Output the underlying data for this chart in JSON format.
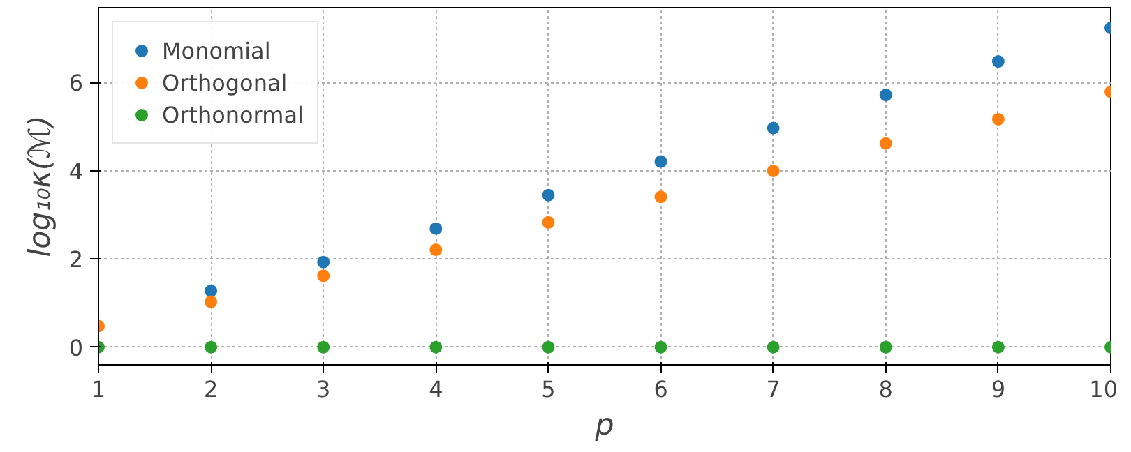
{
  "chart_data": {
    "type": "scatter",
    "xlabel": "p",
    "ylabel": "log₁₀κ(ℳ)",
    "x": [
      1,
      2,
      3,
      4,
      5,
      6,
      7,
      8,
      9,
      10
    ],
    "series": [
      {
        "name": "Monomial",
        "color": "#1f77b4",
        "values": [
          null,
          1.28,
          1.93,
          2.69,
          3.45,
          4.21,
          4.97,
          5.72,
          6.48,
          7.24
        ]
      },
      {
        "name": "Orthogonal",
        "color": "#ff7f0e",
        "values": [
          0.48,
          1.03,
          1.62,
          2.21,
          2.83,
          3.41,
          4.0,
          4.62,
          5.17,
          5.79
        ]
      },
      {
        "name": "Orthonormal",
        "color": "#2ca02c",
        "values": [
          0,
          0,
          0,
          0,
          0,
          0,
          0,
          0,
          0,
          0
        ]
      }
    ],
    "xlim": [
      1,
      10
    ],
    "ylim": [
      -0.4,
      7.7
    ],
    "xticks": [
      1,
      2,
      3,
      4,
      5,
      6,
      7,
      8,
      9,
      10
    ],
    "yticks": [
      0,
      2,
      4,
      6
    ],
    "grid": true,
    "legend": "top left",
    "marker": "circle"
  }
}
